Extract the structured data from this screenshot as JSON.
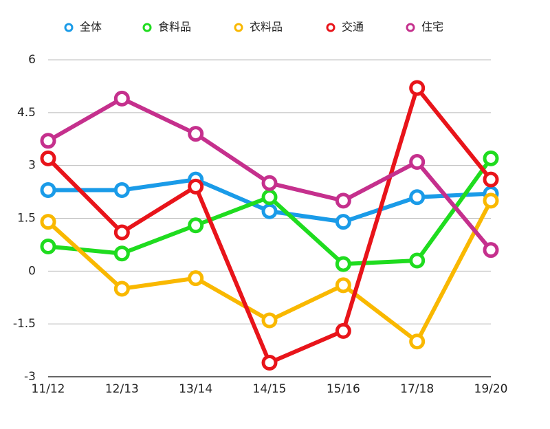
{
  "chart_data": {
    "type": "line",
    "categories": [
      "11/12",
      "12/13",
      "13/14",
      "14/15",
      "15/16",
      "17/18",
      "19/20"
    ],
    "series": [
      {
        "name": "全体",
        "color": "#1a9be8",
        "values": [
          2.3,
          2.3,
          2.6,
          1.7,
          1.4,
          2.1,
          2.2
        ]
      },
      {
        "name": "食料品",
        "color": "#1fdc1f",
        "values": [
          0.7,
          0.5,
          1.3,
          2.1,
          0.2,
          0.3,
          3.2
        ]
      },
      {
        "name": "衣料品",
        "color": "#f9b800",
        "values": [
          1.4,
          -0.5,
          -0.2,
          -1.4,
          -0.4,
          -2.0,
          2.0
        ]
      },
      {
        "name": "交通",
        "color": "#e8141a",
        "values": [
          3.2,
          1.1,
          2.4,
          -2.6,
          -1.7,
          5.2,
          2.6
        ]
      },
      {
        "name": "住宅",
        "color": "#c5308d",
        "values": [
          3.7,
          4.9,
          3.9,
          2.5,
          2.0,
          3.1,
          0.6
        ]
      }
    ],
    "ylim": [
      -3,
      6
    ],
    "yticks": [
      6,
      4.5,
      3,
      1.5,
      0,
      -1.5,
      -3
    ],
    "grid": true,
    "legend": "top"
  }
}
